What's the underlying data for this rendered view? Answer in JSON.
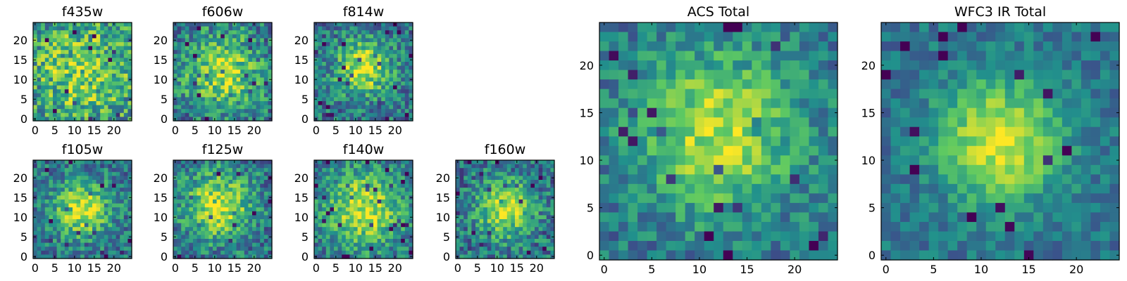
{
  "chart_data": [
    {
      "type": "heatmap",
      "title": "f435w",
      "grid": [
        25,
        25
      ],
      "xticks": [
        "0",
        "5",
        "10",
        "15",
        "20"
      ],
      "yticks": [
        "0",
        "5",
        "10",
        "15",
        "20"
      ],
      "xlim": [
        0,
        25
      ],
      "ylim": [
        0,
        25
      ],
      "cmap": "viridis",
      "center": [
        12,
        12
      ],
      "peak": 0.62,
      "spread": 12,
      "noise": 0.3,
      "seed": 11
    },
    {
      "type": "heatmap",
      "title": "f606w",
      "grid": [
        25,
        25
      ],
      "xticks": [
        "0",
        "5",
        "10",
        "15",
        "20"
      ],
      "yticks": [
        "0",
        "5",
        "10",
        "15",
        "20"
      ],
      "xlim": [
        0,
        25
      ],
      "ylim": [
        0,
        25
      ],
      "cmap": "viridis",
      "center": [
        12,
        12
      ],
      "peak": 0.78,
      "spread": 7,
      "noise": 0.26,
      "seed": 23
    },
    {
      "type": "heatmap",
      "title": "f814w",
      "grid": [
        25,
        25
      ],
      "xticks": [
        "0",
        "5",
        "10",
        "15",
        "20"
      ],
      "yticks": [
        "0",
        "5",
        "10",
        "15",
        "20"
      ],
      "xlim": [
        0,
        25
      ],
      "ylim": [
        0,
        25
      ],
      "cmap": "viridis",
      "center": [
        12,
        13
      ],
      "peak": 0.88,
      "spread": 5,
      "noise": 0.24,
      "seed": 37
    },
    {
      "type": "heatmap",
      "title": "f105w",
      "grid": [
        25,
        25
      ],
      "xticks": [
        "0",
        "5",
        "10",
        "15",
        "20"
      ],
      "yticks": [
        "0",
        "5",
        "10",
        "15",
        "20"
      ],
      "xlim": [
        0,
        25
      ],
      "ylim": [
        0,
        25
      ],
      "cmap": "viridis",
      "center": [
        12,
        12
      ],
      "peak": 0.9,
      "spread": 5,
      "noise": 0.22,
      "seed": 41
    },
    {
      "type": "heatmap",
      "title": "f125w",
      "grid": [
        25,
        25
      ],
      "xticks": [
        "0",
        "5",
        "10",
        "15",
        "20"
      ],
      "yticks": [
        "0",
        "5",
        "10",
        "15",
        "20"
      ],
      "xlim": [
        0,
        25
      ],
      "ylim": [
        0,
        25
      ],
      "cmap": "viridis",
      "center": [
        11,
        13
      ],
      "peak": 0.88,
      "spread": 6,
      "noise": 0.24,
      "seed": 53
    },
    {
      "type": "heatmap",
      "title": "f140w",
      "grid": [
        25,
        25
      ],
      "xticks": [
        "0",
        "5",
        "10",
        "15",
        "20"
      ],
      "yticks": [
        "0",
        "5",
        "10",
        "15",
        "20"
      ],
      "xlim": [
        0,
        25
      ],
      "ylim": [
        0,
        25
      ],
      "cmap": "viridis",
      "center": [
        12,
        12
      ],
      "peak": 0.85,
      "spread": 7,
      "noise": 0.22,
      "seed": 67
    },
    {
      "type": "heatmap",
      "title": "f160w",
      "grid": [
        25,
        25
      ],
      "xticks": [
        "0",
        "5",
        "10",
        "15",
        "20"
      ],
      "yticks": [
        "0",
        "5",
        "10",
        "15",
        "20"
      ],
      "xlim": [
        0,
        25
      ],
      "ylim": [
        0,
        25
      ],
      "cmap": "viridis",
      "center": [
        12,
        12
      ],
      "peak": 0.88,
      "spread": 5,
      "noise": 0.24,
      "seed": 79
    },
    {
      "type": "heatmap",
      "title": "ACS Total",
      "grid": [
        25,
        25
      ],
      "xticks": [
        "0",
        "5",
        "10",
        "15",
        "20"
      ],
      "yticks": [
        "0",
        "5",
        "10",
        "15",
        "20"
      ],
      "xlim": [
        0,
        25
      ],
      "ylim": [
        0,
        25
      ],
      "cmap": "viridis",
      "center": [
        12,
        13
      ],
      "peak": 0.82,
      "spread": 6,
      "noise": 0.18,
      "seed": 97
    },
    {
      "type": "heatmap",
      "title": "WFC3 IR Total",
      "grid": [
        25,
        25
      ],
      "xticks": [
        "0",
        "5",
        "10",
        "15",
        "20"
      ],
      "yticks": [
        "0",
        "5",
        "10",
        "15",
        "20"
      ],
      "xlim": [
        0,
        25
      ],
      "ylim": [
        0,
        25
      ],
      "cmap": "viridis",
      "center": [
        12,
        12
      ],
      "peak": 0.95,
      "spread": 4.5,
      "noise": 0.14,
      "seed": 113
    }
  ],
  "colors": {
    "viridis_stops": [
      "#440154",
      "#3b528b",
      "#21918c",
      "#5ec962",
      "#fde725"
    ],
    "axis": "#000000",
    "background": "#ffffff"
  }
}
